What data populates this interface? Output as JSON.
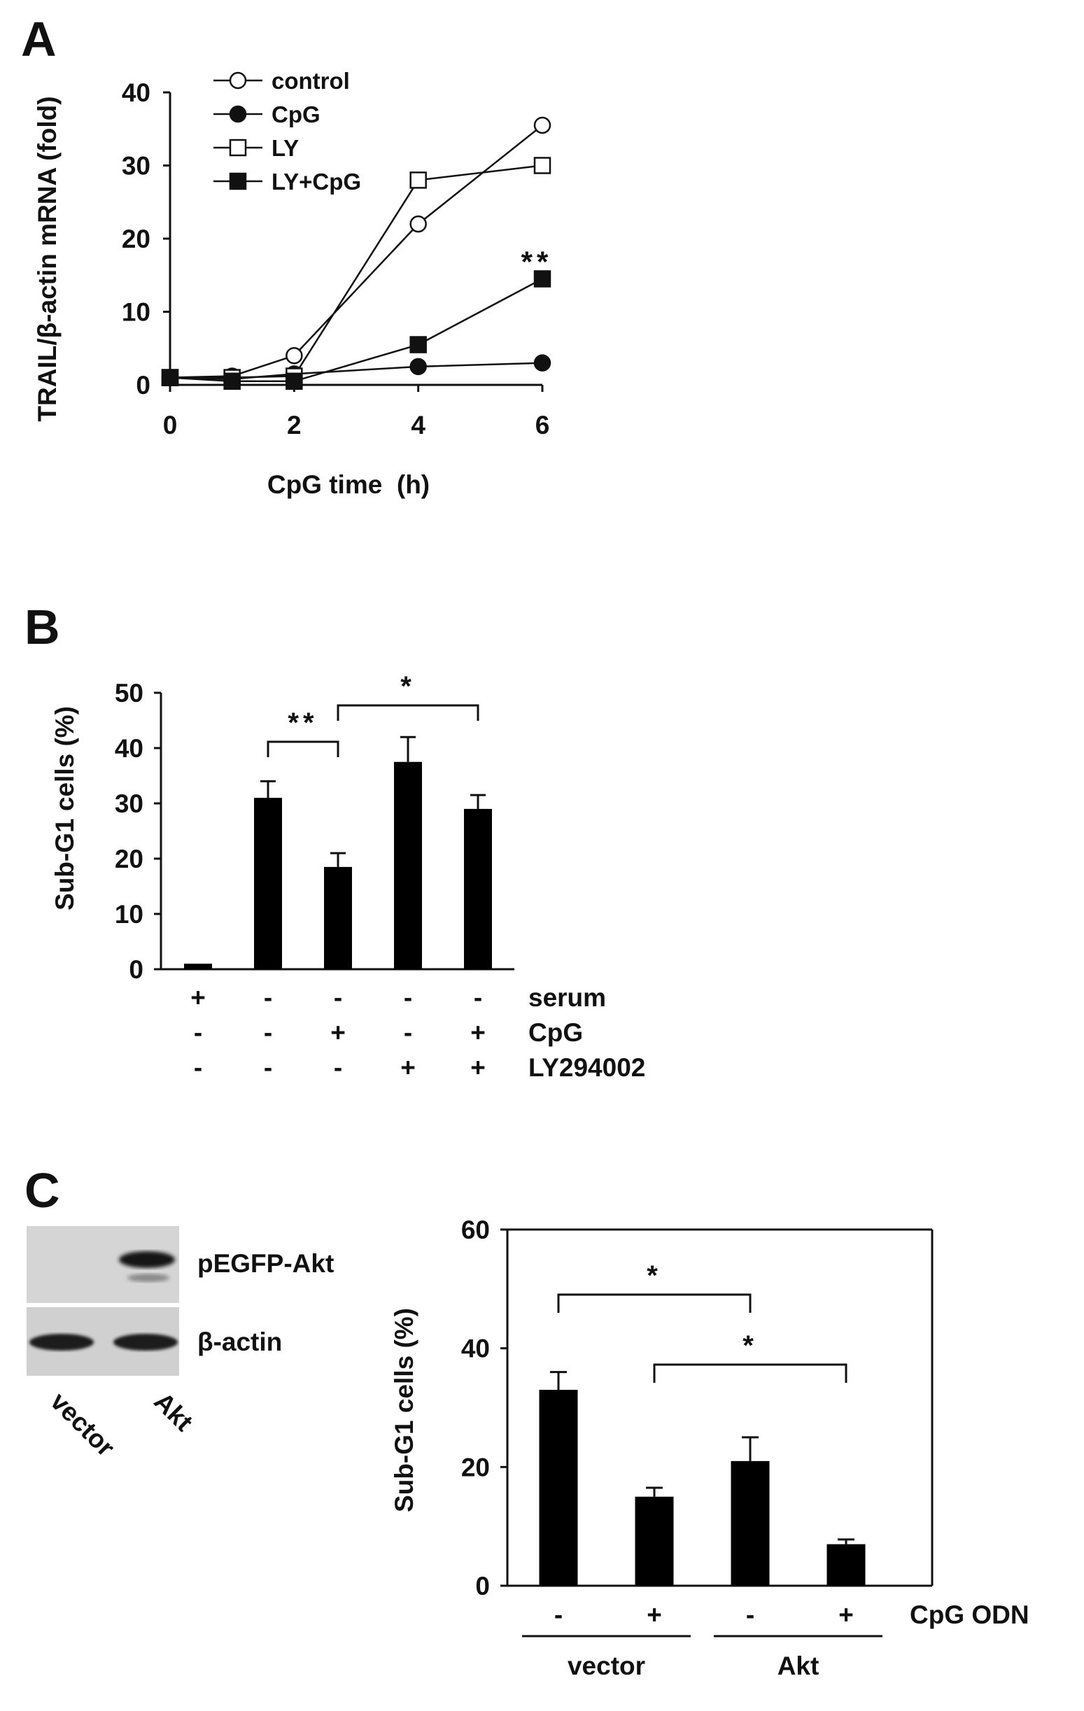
{
  "chart_data": [
    {
      "panel": "A",
      "type": "line",
      "xlabel": "CpG time  (h)",
      "ylabel": "TRAIL/β-actin mRNA (fold)",
      "xlim": [
        0,
        6
      ],
      "ylim": [
        0,
        40
      ],
      "xticks": [
        0,
        2,
        4,
        6
      ],
      "yticks": [
        0,
        10,
        20,
        30,
        40
      ],
      "x": [
        0,
        1,
        2,
        4,
        6
      ],
      "series": [
        {
          "name": "control",
          "marker": "open-circle",
          "values": [
            1,
            1.2,
            4,
            22,
            35.5
          ]
        },
        {
          "name": "CpG",
          "marker": "filled-circle",
          "values": [
            1,
            0.8,
            1.5,
            2.5,
            3
          ]
        },
        {
          "name": "LY",
          "marker": "open-square",
          "values": [
            1,
            1,
            1.2,
            28,
            30
          ]
        },
        {
          "name": "LY+CpG",
          "marker": "filled-square",
          "values": [
            1,
            0.5,
            0.5,
            5.5,
            14.5
          ]
        }
      ],
      "annotations": [
        {
          "text": "**",
          "series": "LY+CpG",
          "x": 6
        }
      ],
      "legend": "top-left"
    },
    {
      "panel": "B",
      "type": "bar",
      "ylabel": "Sub-G1 cells (%)",
      "ylim": [
        0,
        50
      ],
      "yticks": [
        0,
        10,
        20,
        30,
        40,
        50
      ],
      "values": [
        1,
        31,
        18.5,
        37.5,
        29
      ],
      "errors": [
        0,
        3,
        2.5,
        4.5,
        2.5
      ],
      "conditions": [
        {
          "label": "serum",
          "signs": [
            "+",
            "-",
            "-",
            "-",
            "-"
          ]
        },
        {
          "label": "CpG",
          "signs": [
            "-",
            "-",
            "+",
            "-",
            "+"
          ]
        },
        {
          "label": "LY294002",
          "signs": [
            "-",
            "-",
            "-",
            "+",
            "+"
          ]
        }
      ],
      "brackets": [
        {
          "from": 1,
          "to": 2,
          "text": "**"
        },
        {
          "from": 2,
          "to": 4,
          "text": "*"
        }
      ]
    },
    {
      "panel": "C",
      "type": "bar",
      "ylabel": "Sub-G1 cells (%)",
      "ylim": [
        0,
        60
      ],
      "yticks": [
        0,
        20,
        40,
        60
      ],
      "values": [
        33,
        15,
        21,
        7
      ],
      "errors": [
        3,
        1.5,
        4,
        0.8
      ],
      "cpg_signs": [
        "-",
        "+",
        "-",
        "+"
      ],
      "cpg_label": "CpG ODN",
      "groups": [
        {
          "label": "vector",
          "bars": [
            0,
            1
          ]
        },
        {
          "label": "Akt",
          "bars": [
            2,
            3
          ]
        }
      ],
      "brackets": [
        {
          "from": 0,
          "to": 2,
          "text": "*"
        },
        {
          "from": 1,
          "to": 3,
          "text": "*"
        }
      ]
    }
  ],
  "panels": {
    "a": "A",
    "b": "B",
    "c": "C"
  },
  "blot": {
    "lanes": [
      "vector",
      "Akt"
    ],
    "rows": [
      "pEGFP-Akt",
      "β-actin"
    ]
  }
}
